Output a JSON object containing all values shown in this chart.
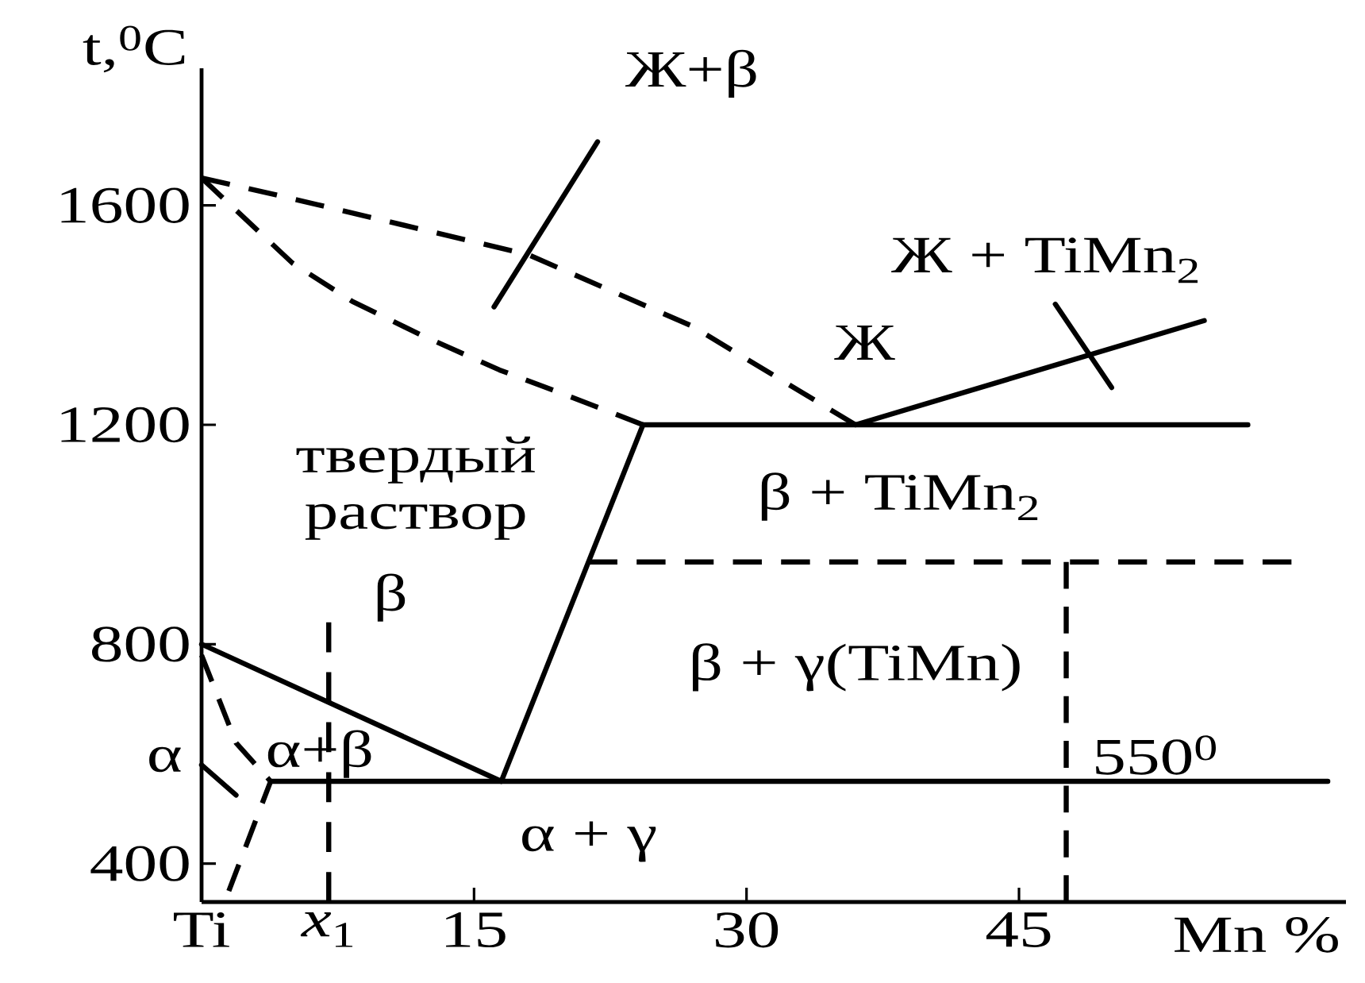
{
  "chart_data": {
    "type": "line",
    "xlabel": "Mn %",
    "ylabel": "t,$^{0}$C",
    "xlim": [
      0,
      63
    ],
    "ylim": [
      330,
      1850
    ],
    "xticks": [
      {
        "value": 0,
        "label": "Ti"
      },
      15,
      30,
      45
    ],
    "yticks": [
      400,
      800,
      1200,
      1600
    ],
    "series": [
      {
        "color": "#000000",
        "line_style": "dashed",
        "x": [
          0,
          4,
          18,
          27,
          36
        ],
        "values": [
          1650,
          1620,
          1510,
          1380,
          1200
        ]
      },
      {
        "color": "#000000",
        "line_style": "dashed",
        "x": [
          0,
          5,
          8.3,
          12,
          16.4,
          20.4,
          24.3
        ],
        "values": [
          1650,
          1495,
          1425,
          1365,
          1300,
          1250,
          1200
        ]
      },
      {
        "color": "#000000",
        "line_style": "solid",
        "x": [
          24.3,
          57.6
        ],
        "values": [
          1200,
          1200
        ]
      },
      {
        "color": "#000000",
        "line_style": "solid",
        "x": [
          36,
          55.2
        ],
        "values": [
          1200,
          1390
        ]
      },
      {
        "color": "#000000",
        "line_style": "solid",
        "x": [
          24.3,
          16.5
        ],
        "values": [
          1200,
          550
        ]
      },
      {
        "color": "#000000",
        "line_style": "solid",
        "x": [
          0,
          16.5
        ],
        "values": [
          800,
          550
        ]
      },
      {
        "color": "#000000",
        "line_style": "solid",
        "x": [
          3.8,
          62
        ],
        "values": [
          550,
          550
        ]
      },
      {
        "color": "#000000",
        "line_style": "dashed",
        "x": [
          0,
          1.9,
          3.8,
          1.5
        ],
        "values": [
          780,
          620,
          550,
          350
        ]
      },
      {
        "color": "#000000",
        "line_style": "dashed",
        "x": [
          21.3,
          60
        ],
        "values": [
          950,
          950
        ]
      },
      {
        "color": "#000000",
        "line_style": "dashed",
        "x": [
          47.6,
          47.6
        ],
        "values": [
          950,
          330
        ]
      },
      {
        "color": "#000000",
        "line_style": "dashed",
        "x": [
          7,
          7
        ],
        "values": [
          840,
          330
        ]
      },
      {
        "color": "#000000",
        "line_style": "solid",
        "x": [
          21.8,
          16.1
        ],
        "values": [
          1716,
          1415
        ]
      },
      {
        "color": "#000000",
        "line_style": "solid",
        "x": [
          47,
          50.1
        ],
        "values": [
          1420,
          1268
        ]
      },
      {
        "color": "#000000",
        "line_style": "solid",
        "x": [
          0,
          1.9
        ],
        "values": [
          580,
          525
        ]
      }
    ],
    "annotations": [
      "Ж+β",
      "Ж + TiMn$_{2}$",
      "Ж",
      "твердый",
      "раствор",
      "β",
      "β + TiMn$_{2}$",
      "β + γ(TiMn)",
      "α+β",
      "α + γ",
      "α",
      {
        "text": "550$^{0}$",
        "x": 52.5,
        "y": 550
      },
      {
        "text": "*x*$_{1}$",
        "x": 7,
        "y": 330
      }
    ]
  }
}
